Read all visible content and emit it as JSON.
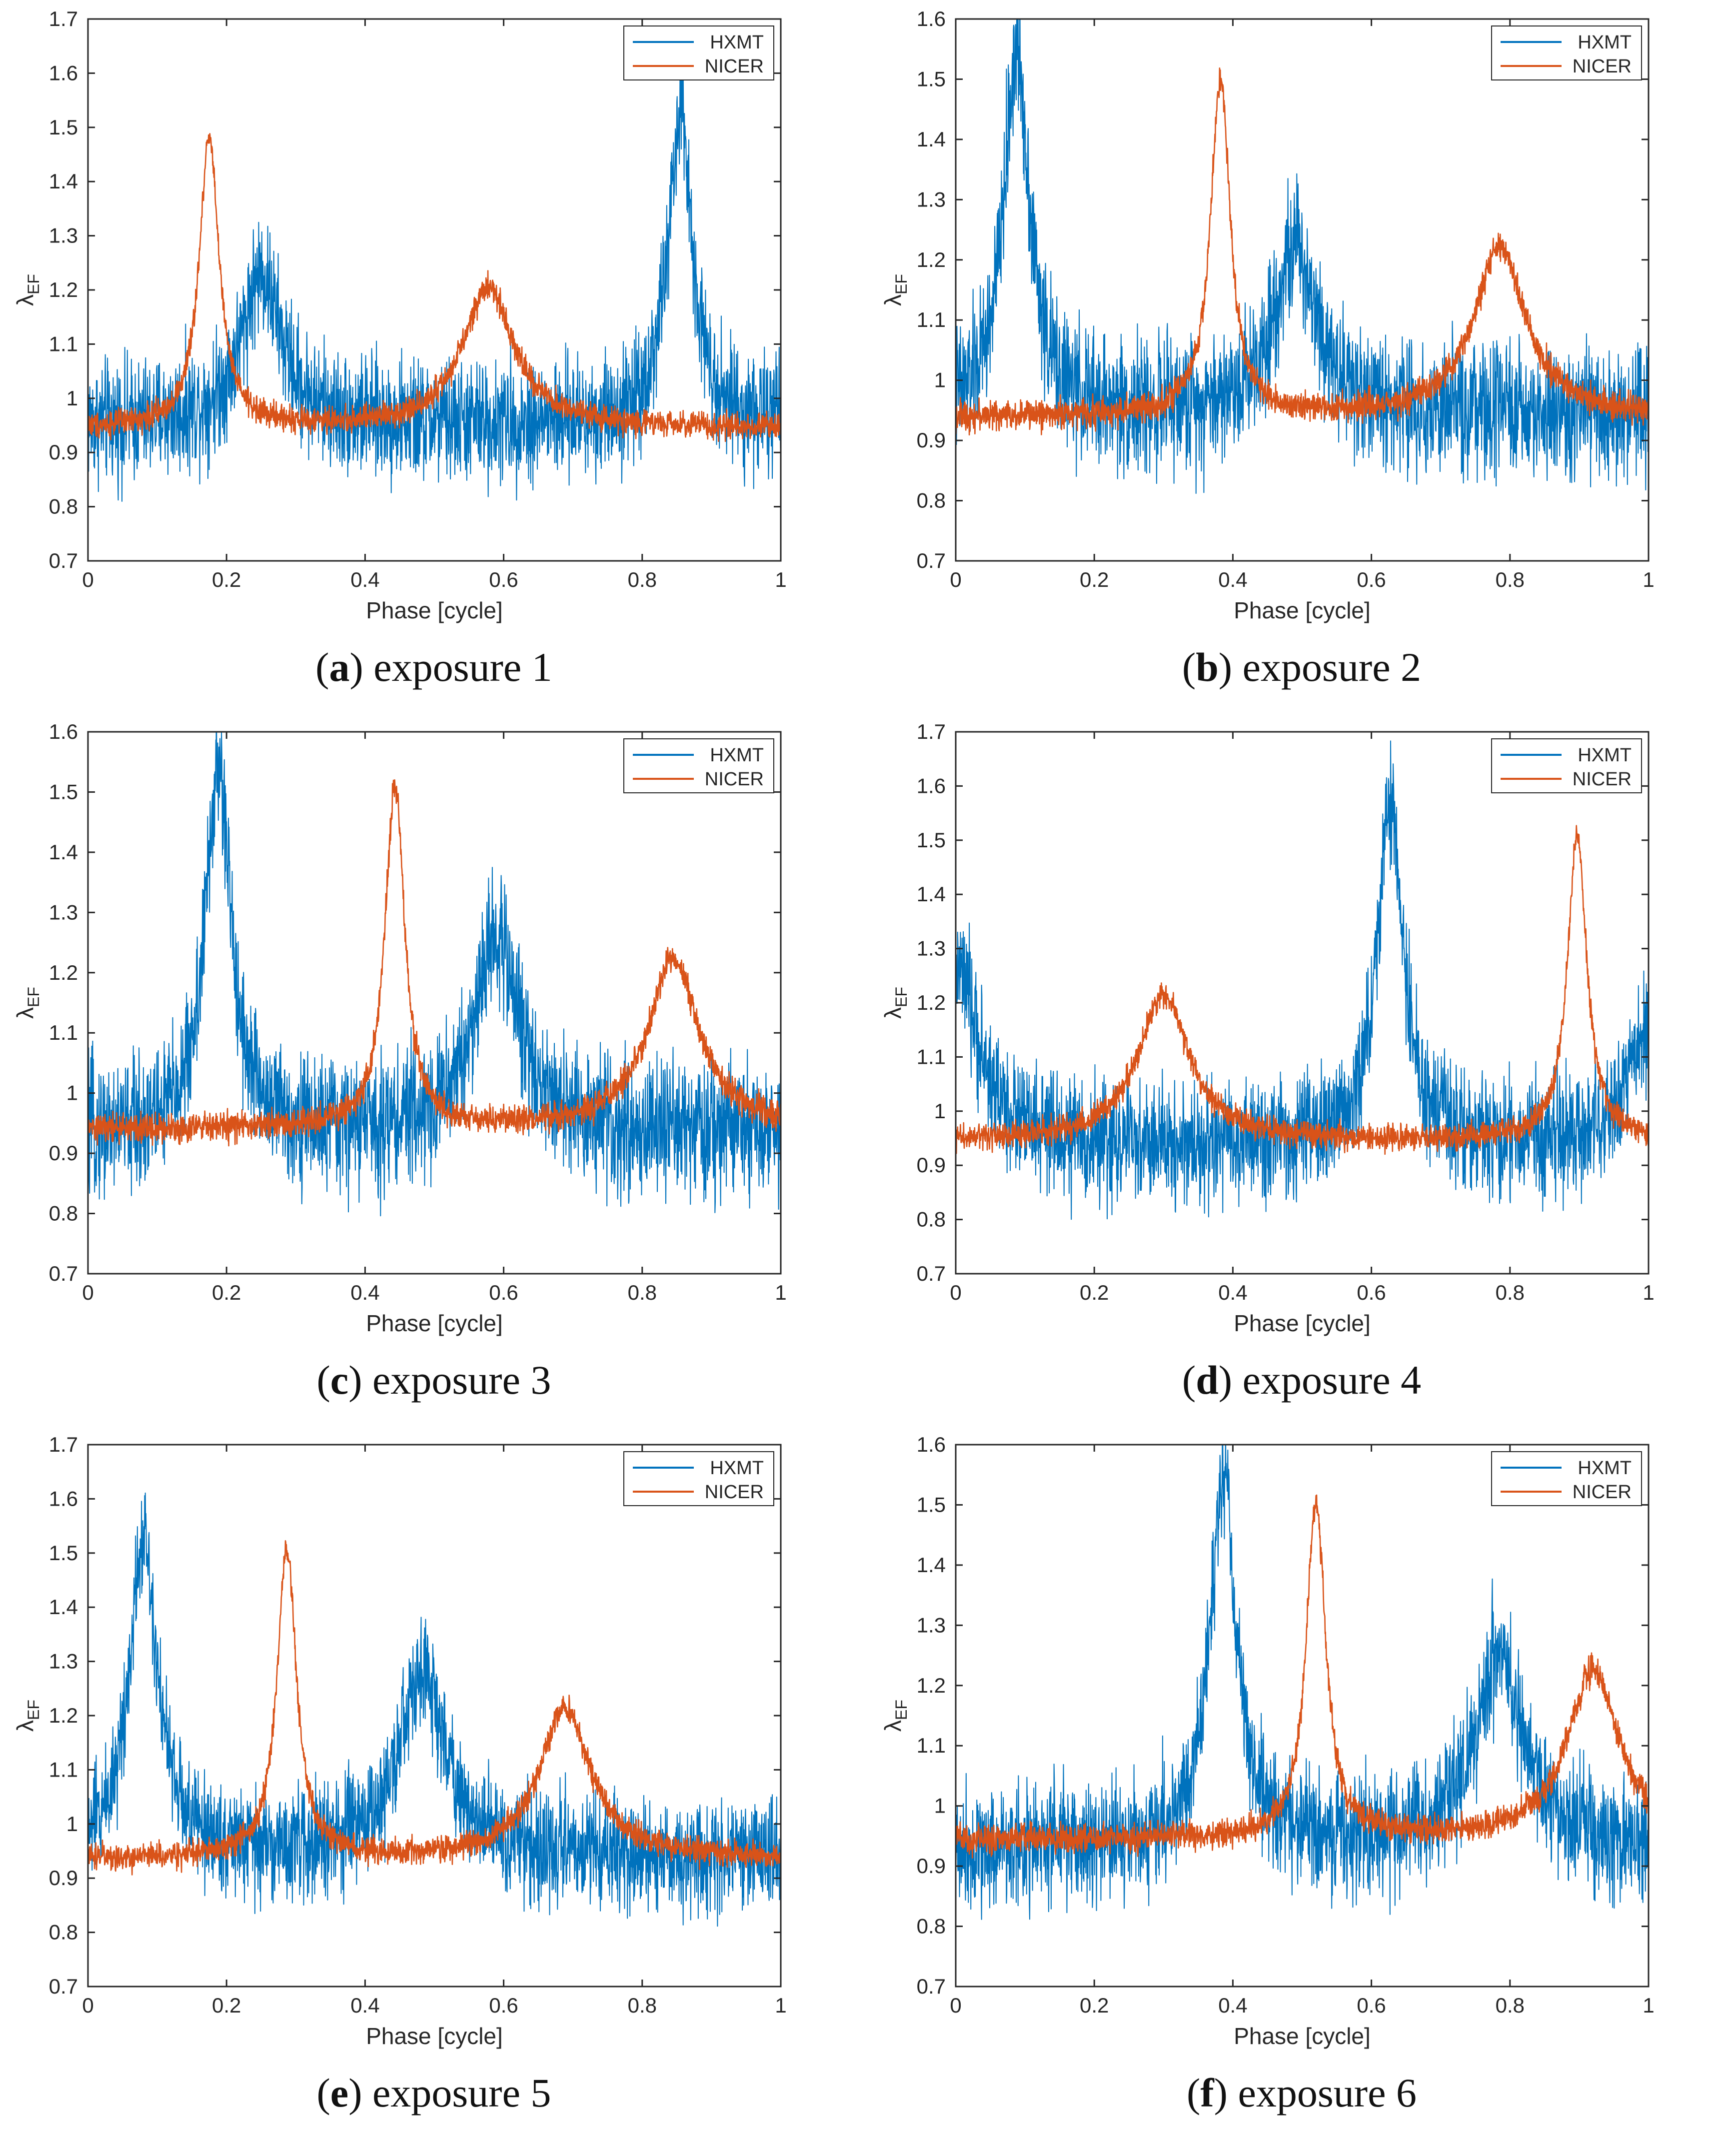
{
  "colors": {
    "hxmt": "#0072BD",
    "nicer": "#D95319",
    "axis": "#262626"
  },
  "chart_data": [
    {
      "type": "line",
      "caption_letter": "a",
      "caption_text": "exposure 1",
      "xlabel": "Phase [cycle]",
      "ylabel": "λ",
      "ylabel_sub": "EF",
      "xlim": [
        0,
        1
      ],
      "ylim": [
        0.7,
        1.7
      ],
      "xticks": [
        "0",
        "0.2",
        "0.4",
        "0.6",
        "0.8",
        "1"
      ],
      "yticks": [
        "0.7",
        "0.8",
        "0.9",
        "1",
        "1.1",
        "1.2",
        "1.3",
        "1.4",
        "1.5",
        "1.6",
        "1.7"
      ],
      "legend_position": "top-right",
      "series": [
        {
          "name": "HXMT",
          "baseline": 0.95,
          "noise": 0.055,
          "peaks": [
            {
              "x": 0.25,
              "height": 0.28,
              "width": 0.035
            },
            {
              "x": 0.855,
              "height": 0.56,
              "width": 0.022
            }
          ]
        },
        {
          "name": "NICER",
          "baseline": 0.945,
          "noise": 0.012,
          "peaks": [
            {
              "x": 0.175,
              "height": 0.54,
              "width": 0.017
            },
            {
              "x": 0.578,
              "height": 0.26,
              "width": 0.045
            }
          ]
        }
      ]
    },
    {
      "type": "line",
      "caption_letter": "b",
      "caption_text": "exposure 2",
      "xlabel": "Phase [cycle]",
      "ylabel": "λ",
      "ylabel_sub": "EF",
      "xlim": [
        0,
        1
      ],
      "ylim": [
        0.7,
        1.6
      ],
      "xticks": [
        "0",
        "0.2",
        "0.4",
        "0.6",
        "0.8",
        "1"
      ],
      "yticks": [
        "0.7",
        "0.8",
        "0.9",
        "1",
        "1.1",
        "1.2",
        "1.3",
        "1.4",
        "1.5",
        "1.6"
      ],
      "legend_position": "top-right",
      "series": [
        {
          "name": "HXMT",
          "baseline": 0.94,
          "noise": 0.055,
          "peaks": [
            {
              "x": 0.088,
              "height": 0.6,
              "width": 0.023
            },
            {
              "x": 0.49,
              "height": 0.28,
              "width": 0.04
            }
          ]
        },
        {
          "name": "NICER",
          "baseline": 0.94,
          "noise": 0.012,
          "peaks": [
            {
              "x": 0.382,
              "height": 0.56,
              "width": 0.017
            },
            {
              "x": 0.785,
              "height": 0.28,
              "width": 0.045
            }
          ]
        }
      ]
    },
    {
      "type": "line",
      "caption_letter": "c",
      "caption_text": "exposure 3",
      "xlabel": "Phase [cycle]",
      "ylabel": "λ",
      "ylabel_sub": "EF",
      "xlim": [
        0,
        1
      ],
      "ylim": [
        0.7,
        1.6
      ],
      "xticks": [
        "0",
        "0.2",
        "0.4",
        "0.6",
        "0.8",
        "1"
      ],
      "yticks": [
        "0.7",
        "0.8",
        "0.9",
        "1",
        "1.1",
        "1.2",
        "1.3",
        "1.4",
        "1.5",
        "1.6"
      ],
      "legend_position": "top-right",
      "series": [
        {
          "name": "HXMT",
          "baseline": 0.93,
          "noise": 0.055,
          "peaks": [
            {
              "x": 0.188,
              "height": 0.6,
              "width": 0.023
            },
            {
              "x": 0.59,
              "height": 0.33,
              "width": 0.04
            }
          ]
        },
        {
          "name": "NICER",
          "baseline": 0.94,
          "noise": 0.012,
          "peaks": [
            {
              "x": 0.443,
              "height": 0.57,
              "width": 0.017
            },
            {
              "x": 0.845,
              "height": 0.28,
              "width": 0.045
            }
          ]
        }
      ]
    },
    {
      "type": "line",
      "caption_letter": "d",
      "caption_text": "exposure 4",
      "xlabel": "Phase [cycle]",
      "ylabel": "λ",
      "ylabel_sub": "EF",
      "xlim": [
        0,
        1
      ],
      "ylim": [
        0.7,
        1.7
      ],
      "xticks": [
        "0",
        "0.2",
        "0.4",
        "0.6",
        "0.8",
        "1"
      ],
      "yticks": [
        "0.7",
        "0.8",
        "0.9",
        "1",
        "1.1",
        "1.2",
        "1.3",
        "1.4",
        "1.5",
        "1.6",
        "1.7"
      ],
      "legend_position": "top-right",
      "series": [
        {
          "name": "HXMT",
          "baseline": 0.93,
          "noise": 0.055,
          "peaks": [
            {
              "x": 0.0,
              "height": 0.33,
              "width": 0.04
            },
            {
              "x": 0.627,
              "height": 0.63,
              "width": 0.023
            },
            {
              "x": 1.0,
              "height": 0.2,
              "width": 0.04
            }
          ]
        },
        {
          "name": "NICER",
          "baseline": 0.945,
          "noise": 0.012,
          "peaks": [
            {
              "x": 0.3,
              "height": 0.27,
              "width": 0.045
            },
            {
              "x": 0.897,
              "height": 0.56,
              "width": 0.017
            }
          ]
        }
      ]
    },
    {
      "type": "line",
      "caption_letter": "e",
      "caption_text": "exposure 5",
      "xlabel": "Phase [cycle]",
      "ylabel": "λ",
      "ylabel_sub": "EF",
      "xlim": [
        0,
        1
      ],
      "ylim": [
        0.7,
        1.7
      ],
      "xticks": [
        "0",
        "0.2",
        "0.4",
        "0.6",
        "0.8",
        "1"
      ],
      "yticks": [
        "0.7",
        "0.8",
        "0.9",
        "1",
        "1.1",
        "1.2",
        "1.3",
        "1.4",
        "1.5",
        "1.6",
        "1.7"
      ],
      "legend_position": "top-right",
      "series": [
        {
          "name": "HXMT",
          "baseline": 0.94,
          "noise": 0.05,
          "peaks": [
            {
              "x": 0.08,
              "height": 0.59,
              "width": 0.025
            },
            {
              "x": 0.483,
              "height": 0.34,
              "width": 0.04
            }
          ]
        },
        {
          "name": "NICER",
          "baseline": 0.935,
          "noise": 0.012,
          "peaks": [
            {
              "x": 0.287,
              "height": 0.57,
              "width": 0.017
            },
            {
              "x": 0.688,
              "height": 0.28,
              "width": 0.045
            }
          ]
        }
      ]
    },
    {
      "type": "line",
      "caption_letter": "f",
      "caption_text": "exposure 6",
      "xlabel": "Phase [cycle]",
      "ylabel": "λ",
      "ylabel_sub": "EF",
      "xlim": [
        0,
        1
      ],
      "ylim": [
        0.7,
        1.6
      ],
      "xticks": [
        "0",
        "0.2",
        "0.4",
        "0.6",
        "0.8",
        "1"
      ],
      "yticks": [
        "0.7",
        "0.8",
        "0.9",
        "1",
        "1.1",
        "1.2",
        "1.3",
        "1.4",
        "1.5",
        "1.6"
      ],
      "legend_position": "top-right",
      "series": [
        {
          "name": "HXMT",
          "baseline": 0.93,
          "noise": 0.05,
          "peaks": [
            {
              "x": 0.386,
              "height": 0.62,
              "width": 0.023
            },
            {
              "x": 0.785,
              "height": 0.33,
              "width": 0.04
            }
          ]
        },
        {
          "name": "NICER",
          "baseline": 0.945,
          "noise": 0.012,
          "peaks": [
            {
              "x": 0.52,
              "height": 0.56,
              "width": 0.017
            },
            {
              "x": 0.92,
              "height": 0.28,
              "width": 0.045
            }
          ]
        }
      ]
    }
  ]
}
